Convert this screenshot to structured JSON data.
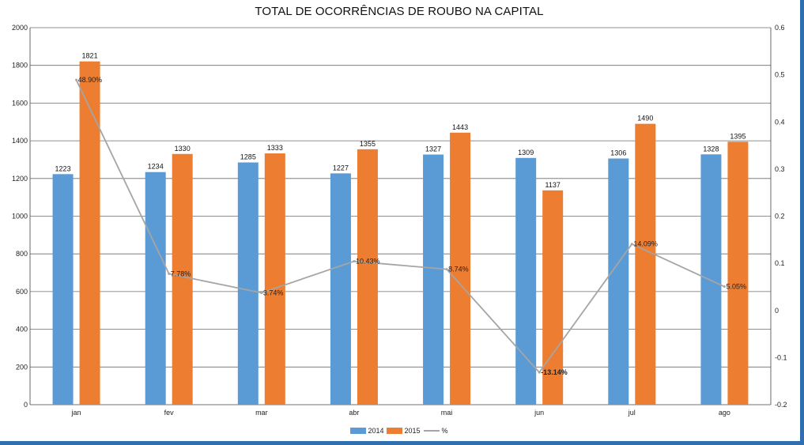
{
  "chart_data": {
    "type": "bar",
    "title": "TOTAL DE OCORRÊNCIAS DE ROUBO NA CAPITAL",
    "categories": [
      "jan",
      "fev",
      "mar",
      "abr",
      "mai",
      "jun",
      "jul",
      "ago"
    ],
    "series": [
      {
        "name": "2014",
        "type": "bar",
        "color": "#5b9bd5",
        "values": [
          1223,
          1234,
          1285,
          1227,
          1327,
          1309,
          1306,
          1328
        ]
      },
      {
        "name": "2015",
        "type": "bar",
        "color": "#ed7d31",
        "values": [
          1821,
          1330,
          1333,
          1355,
          1443,
          1137,
          1490,
          1395
        ]
      },
      {
        "name": "%",
        "type": "line",
        "axis": "right",
        "color": "#a5a5a5",
        "values": [
          0.489,
          0.0778,
          0.0374,
          0.1043,
          0.0874,
          -0.1314,
          0.1409,
          0.0505
        ],
        "labels": [
          "48.90%",
          "7.78%",
          "3.74%",
          "10.43%",
          "8.74%",
          "-13.14%",
          "14.09%",
          "5.05%"
        ]
      }
    ],
    "ylim": [
      0,
      2000
    ],
    "y_ticks": [
      "0",
      "200",
      "400",
      "600",
      "800",
      "1000",
      "1200",
      "1400",
      "1600",
      "1800",
      "2000"
    ],
    "y2lim": [
      -0.2,
      0.6
    ],
    "y2_ticks": [
      "-0.2",
      "-0.1",
      "0",
      "0.1",
      "0.2",
      "0.3",
      "0.4",
      "0.5",
      "0.6"
    ],
    "grid": true,
    "legend_position": "bottom"
  }
}
